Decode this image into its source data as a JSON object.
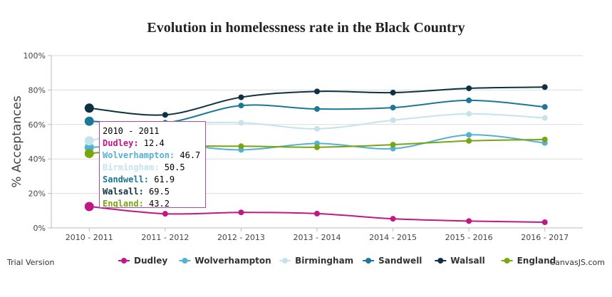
{
  "title": "Evolution in homelessness rate in the Black Country",
  "trial_text": "Trial Version",
  "brand_text": "CanvasJS.com",
  "chart_data": {
    "type": "line",
    "title": "Evolution in homelessness rate in the Black Country",
    "xlabel": "",
    "ylabel": "% Acceptances",
    "ylim": [
      0,
      100
    ],
    "y_ticks": [
      "0%",
      "20%",
      "40%",
      "60%",
      "80%",
      "100%"
    ],
    "y_tick_values": [
      0,
      20,
      40,
      60,
      80,
      100
    ],
    "categories": [
      "2010 - 2011",
      "2011 - 2012",
      "2012 - 2013",
      "2013 - 2014",
      "2014 - 2015",
      "2015 - 2016",
      "2016 - 2017"
    ],
    "grid": true,
    "legend_position": "bottom",
    "series": [
      {
        "name": "Dudley",
        "color": "#c21885",
        "values": [
          12.4,
          8.2,
          9.0,
          8.3,
          5.3,
          4.0,
          3.3
        ]
      },
      {
        "name": "Wolverhampton",
        "color": "#54b1d6",
        "values": [
          46.7,
          48.5,
          45.3,
          49.0,
          46.0,
          54.0,
          49.3
        ]
      },
      {
        "name": "Birmingham",
        "color": "#c5e3ed",
        "values": [
          50.5,
          59.5,
          61.0,
          57.5,
          62.5,
          66.2,
          63.8
        ]
      },
      {
        "name": "Sandwell",
        "color": "#1b7896",
        "values": [
          61.9,
          61.0,
          71.0,
          69.0,
          69.8,
          74.0,
          70.2
        ]
      },
      {
        "name": "Walsall",
        "color": "#0d3043",
        "values": [
          69.5,
          65.6,
          75.8,
          79.2,
          78.5,
          81.0,
          81.7
        ]
      },
      {
        "name": "England",
        "color": "#78a611",
        "values": [
          43.2,
          47.0,
          47.4,
          46.8,
          48.3,
          50.5,
          51.3
        ]
      }
    ],
    "tooltip": {
      "header": "2010 - 2011",
      "rows": [
        {
          "label": "Dudley:",
          "value": "12.4",
          "color": "#c21885"
        },
        {
          "label": "Wolverhampton:",
          "value": "46.7",
          "color": "#54b1d6"
        },
        {
          "label": "Birmingham:",
          "value": "50.5",
          "color": "#c5e3ed"
        },
        {
          "label": "Sandwell:",
          "value": "61.9",
          "color": "#1b7896"
        },
        {
          "label": "Walsall:",
          "value": "69.5",
          "color": "#0d3043"
        },
        {
          "label": "England:",
          "value": "43.2",
          "color": "#78a611"
        }
      ]
    }
  }
}
